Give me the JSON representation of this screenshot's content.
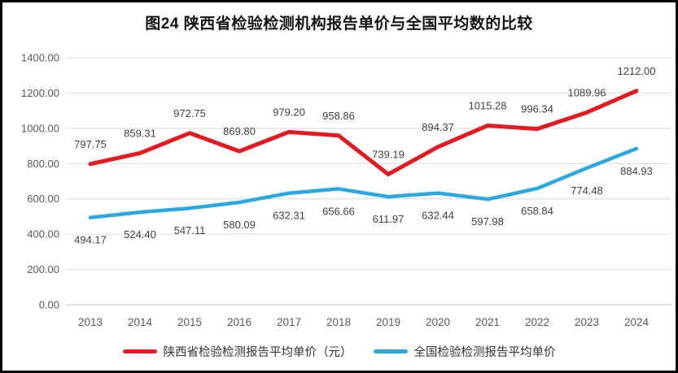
{
  "chart_data": {
    "type": "line",
    "title": "图24 陕西省检验检测机构报告单价与全国平均数的比较",
    "categories": [
      "2013",
      "2014",
      "2015",
      "2016",
      "2017",
      "2018",
      "2019",
      "2020",
      "2021",
      "2022",
      "2023",
      "2024"
    ],
    "series": [
      {
        "name": "陕西省检验检测报告平均单价（元）",
        "color": "#e31b20",
        "values": [
          797.75,
          859.31,
          972.75,
          869.8,
          979.2,
          958.86,
          739.19,
          894.37,
          1015.28,
          996.34,
          1089.96,
          1212.0
        ]
      },
      {
        "name": "全国检验检测报告平均单价",
        "color": "#29a9e0",
        "values": [
          494.17,
          524.4,
          547.11,
          580.09,
          632.31,
          656.66,
          611.97,
          632.44,
          597.98,
          658.84,
          774.48,
          884.93
        ]
      }
    ],
    "xlabel": "",
    "ylabel": "",
    "ylim": [
      0,
      1400
    ],
    "ytick_step": 200,
    "ytick_format_decimals": 2,
    "grid": true,
    "legend_position": "bottom"
  },
  "colors": {
    "gridline": "#d9d9d9",
    "baseline": "#c6c6c6",
    "axis_text": "#595959",
    "data_label_text": "#404040",
    "border": "#000000",
    "background": "#ffffff"
  }
}
